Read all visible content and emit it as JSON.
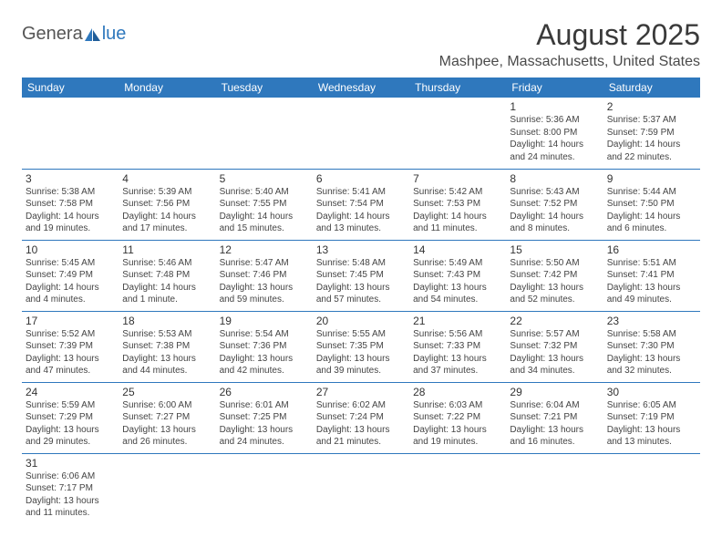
{
  "logo": {
    "text1": "Genera",
    "text2": "lue",
    "color_primary": "#2f78bd",
    "color_gray": "#555555"
  },
  "title": "August 2025",
  "location": "Mashpee, Massachusetts, United States",
  "header_bg": "#2f78bd",
  "header_fg": "#ffffff",
  "border_color": "#2f78bd",
  "text_color": "#444444",
  "day_headers": [
    "Sunday",
    "Monday",
    "Tuesday",
    "Wednesday",
    "Thursday",
    "Friday",
    "Saturday"
  ],
  "weeks": [
    [
      null,
      null,
      null,
      null,
      null,
      {
        "n": "1",
        "sr": "Sunrise: 5:36 AM",
        "ss": "Sunset: 8:00 PM",
        "d1": "Daylight: 14 hours",
        "d2": "and 24 minutes."
      },
      {
        "n": "2",
        "sr": "Sunrise: 5:37 AM",
        "ss": "Sunset: 7:59 PM",
        "d1": "Daylight: 14 hours",
        "d2": "and 22 minutes."
      }
    ],
    [
      {
        "n": "3",
        "sr": "Sunrise: 5:38 AM",
        "ss": "Sunset: 7:58 PM",
        "d1": "Daylight: 14 hours",
        "d2": "and 19 minutes."
      },
      {
        "n": "4",
        "sr": "Sunrise: 5:39 AM",
        "ss": "Sunset: 7:56 PM",
        "d1": "Daylight: 14 hours",
        "d2": "and 17 minutes."
      },
      {
        "n": "5",
        "sr": "Sunrise: 5:40 AM",
        "ss": "Sunset: 7:55 PM",
        "d1": "Daylight: 14 hours",
        "d2": "and 15 minutes."
      },
      {
        "n": "6",
        "sr": "Sunrise: 5:41 AM",
        "ss": "Sunset: 7:54 PM",
        "d1": "Daylight: 14 hours",
        "d2": "and 13 minutes."
      },
      {
        "n": "7",
        "sr": "Sunrise: 5:42 AM",
        "ss": "Sunset: 7:53 PM",
        "d1": "Daylight: 14 hours",
        "d2": "and 11 minutes."
      },
      {
        "n": "8",
        "sr": "Sunrise: 5:43 AM",
        "ss": "Sunset: 7:52 PM",
        "d1": "Daylight: 14 hours",
        "d2": "and 8 minutes."
      },
      {
        "n": "9",
        "sr": "Sunrise: 5:44 AM",
        "ss": "Sunset: 7:50 PM",
        "d1": "Daylight: 14 hours",
        "d2": "and 6 minutes."
      }
    ],
    [
      {
        "n": "10",
        "sr": "Sunrise: 5:45 AM",
        "ss": "Sunset: 7:49 PM",
        "d1": "Daylight: 14 hours",
        "d2": "and 4 minutes."
      },
      {
        "n": "11",
        "sr": "Sunrise: 5:46 AM",
        "ss": "Sunset: 7:48 PM",
        "d1": "Daylight: 14 hours",
        "d2": "and 1 minute."
      },
      {
        "n": "12",
        "sr": "Sunrise: 5:47 AM",
        "ss": "Sunset: 7:46 PM",
        "d1": "Daylight: 13 hours",
        "d2": "and 59 minutes."
      },
      {
        "n": "13",
        "sr": "Sunrise: 5:48 AM",
        "ss": "Sunset: 7:45 PM",
        "d1": "Daylight: 13 hours",
        "d2": "and 57 minutes."
      },
      {
        "n": "14",
        "sr": "Sunrise: 5:49 AM",
        "ss": "Sunset: 7:43 PM",
        "d1": "Daylight: 13 hours",
        "d2": "and 54 minutes."
      },
      {
        "n": "15",
        "sr": "Sunrise: 5:50 AM",
        "ss": "Sunset: 7:42 PM",
        "d1": "Daylight: 13 hours",
        "d2": "and 52 minutes."
      },
      {
        "n": "16",
        "sr": "Sunrise: 5:51 AM",
        "ss": "Sunset: 7:41 PM",
        "d1": "Daylight: 13 hours",
        "d2": "and 49 minutes."
      }
    ],
    [
      {
        "n": "17",
        "sr": "Sunrise: 5:52 AM",
        "ss": "Sunset: 7:39 PM",
        "d1": "Daylight: 13 hours",
        "d2": "and 47 minutes."
      },
      {
        "n": "18",
        "sr": "Sunrise: 5:53 AM",
        "ss": "Sunset: 7:38 PM",
        "d1": "Daylight: 13 hours",
        "d2": "and 44 minutes."
      },
      {
        "n": "19",
        "sr": "Sunrise: 5:54 AM",
        "ss": "Sunset: 7:36 PM",
        "d1": "Daylight: 13 hours",
        "d2": "and 42 minutes."
      },
      {
        "n": "20",
        "sr": "Sunrise: 5:55 AM",
        "ss": "Sunset: 7:35 PM",
        "d1": "Daylight: 13 hours",
        "d2": "and 39 minutes."
      },
      {
        "n": "21",
        "sr": "Sunrise: 5:56 AM",
        "ss": "Sunset: 7:33 PM",
        "d1": "Daylight: 13 hours",
        "d2": "and 37 minutes."
      },
      {
        "n": "22",
        "sr": "Sunrise: 5:57 AM",
        "ss": "Sunset: 7:32 PM",
        "d1": "Daylight: 13 hours",
        "d2": "and 34 minutes."
      },
      {
        "n": "23",
        "sr": "Sunrise: 5:58 AM",
        "ss": "Sunset: 7:30 PM",
        "d1": "Daylight: 13 hours",
        "d2": "and 32 minutes."
      }
    ],
    [
      {
        "n": "24",
        "sr": "Sunrise: 5:59 AM",
        "ss": "Sunset: 7:29 PM",
        "d1": "Daylight: 13 hours",
        "d2": "and 29 minutes."
      },
      {
        "n": "25",
        "sr": "Sunrise: 6:00 AM",
        "ss": "Sunset: 7:27 PM",
        "d1": "Daylight: 13 hours",
        "d2": "and 26 minutes."
      },
      {
        "n": "26",
        "sr": "Sunrise: 6:01 AM",
        "ss": "Sunset: 7:25 PM",
        "d1": "Daylight: 13 hours",
        "d2": "and 24 minutes."
      },
      {
        "n": "27",
        "sr": "Sunrise: 6:02 AM",
        "ss": "Sunset: 7:24 PM",
        "d1": "Daylight: 13 hours",
        "d2": "and 21 minutes."
      },
      {
        "n": "28",
        "sr": "Sunrise: 6:03 AM",
        "ss": "Sunset: 7:22 PM",
        "d1": "Daylight: 13 hours",
        "d2": "and 19 minutes."
      },
      {
        "n": "29",
        "sr": "Sunrise: 6:04 AM",
        "ss": "Sunset: 7:21 PM",
        "d1": "Daylight: 13 hours",
        "d2": "and 16 minutes."
      },
      {
        "n": "30",
        "sr": "Sunrise: 6:05 AM",
        "ss": "Sunset: 7:19 PM",
        "d1": "Daylight: 13 hours",
        "d2": "and 13 minutes."
      }
    ],
    [
      {
        "n": "31",
        "sr": "Sunrise: 6:06 AM",
        "ss": "Sunset: 7:17 PM",
        "d1": "Daylight: 13 hours",
        "d2": "and 11 minutes."
      },
      null,
      null,
      null,
      null,
      null,
      null
    ]
  ]
}
